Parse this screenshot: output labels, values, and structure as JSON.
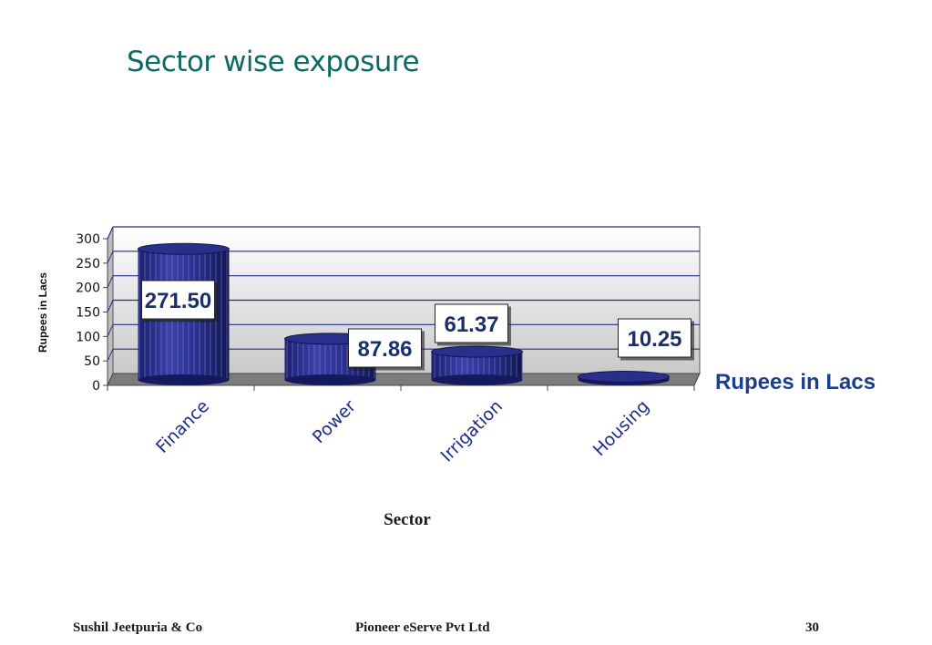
{
  "slide": {
    "title": "Sector wise exposure"
  },
  "chart_data": {
    "type": "bar",
    "style": "3d-cylinder",
    "categories": [
      "Finance",
      "Power",
      "Irrigation",
      "Housing"
    ],
    "series": [
      {
        "name": "Rupees in Lacs",
        "values": [
          271.5,
          87.86,
          61.37,
          10.25
        ]
      }
    ],
    "data_labels": [
      "271.50",
      "87.86",
      "61.37",
      "10.25"
    ],
    "xlabel": "Sector",
    "ylabel": "Rupees in Lacs",
    "ylim": [
      0,
      300
    ],
    "yticks": [
      0,
      50,
      100,
      150,
      200,
      250,
      300
    ],
    "grid": true,
    "legend": "right",
    "colors": {
      "bar": "#2a2f8c",
      "bar_dark": "#141a5e",
      "bar_light": "#5a62c2",
      "wall": "#d8d8d8",
      "floor": "#7c7c7c",
      "gridline": "#22308a",
      "legend_text": "#1b3f8a"
    }
  },
  "footer": {
    "left": "Sushil Jeetpuria & Co",
    "center": "Pioneer eServe Pvt Ltd",
    "page": "30"
  }
}
